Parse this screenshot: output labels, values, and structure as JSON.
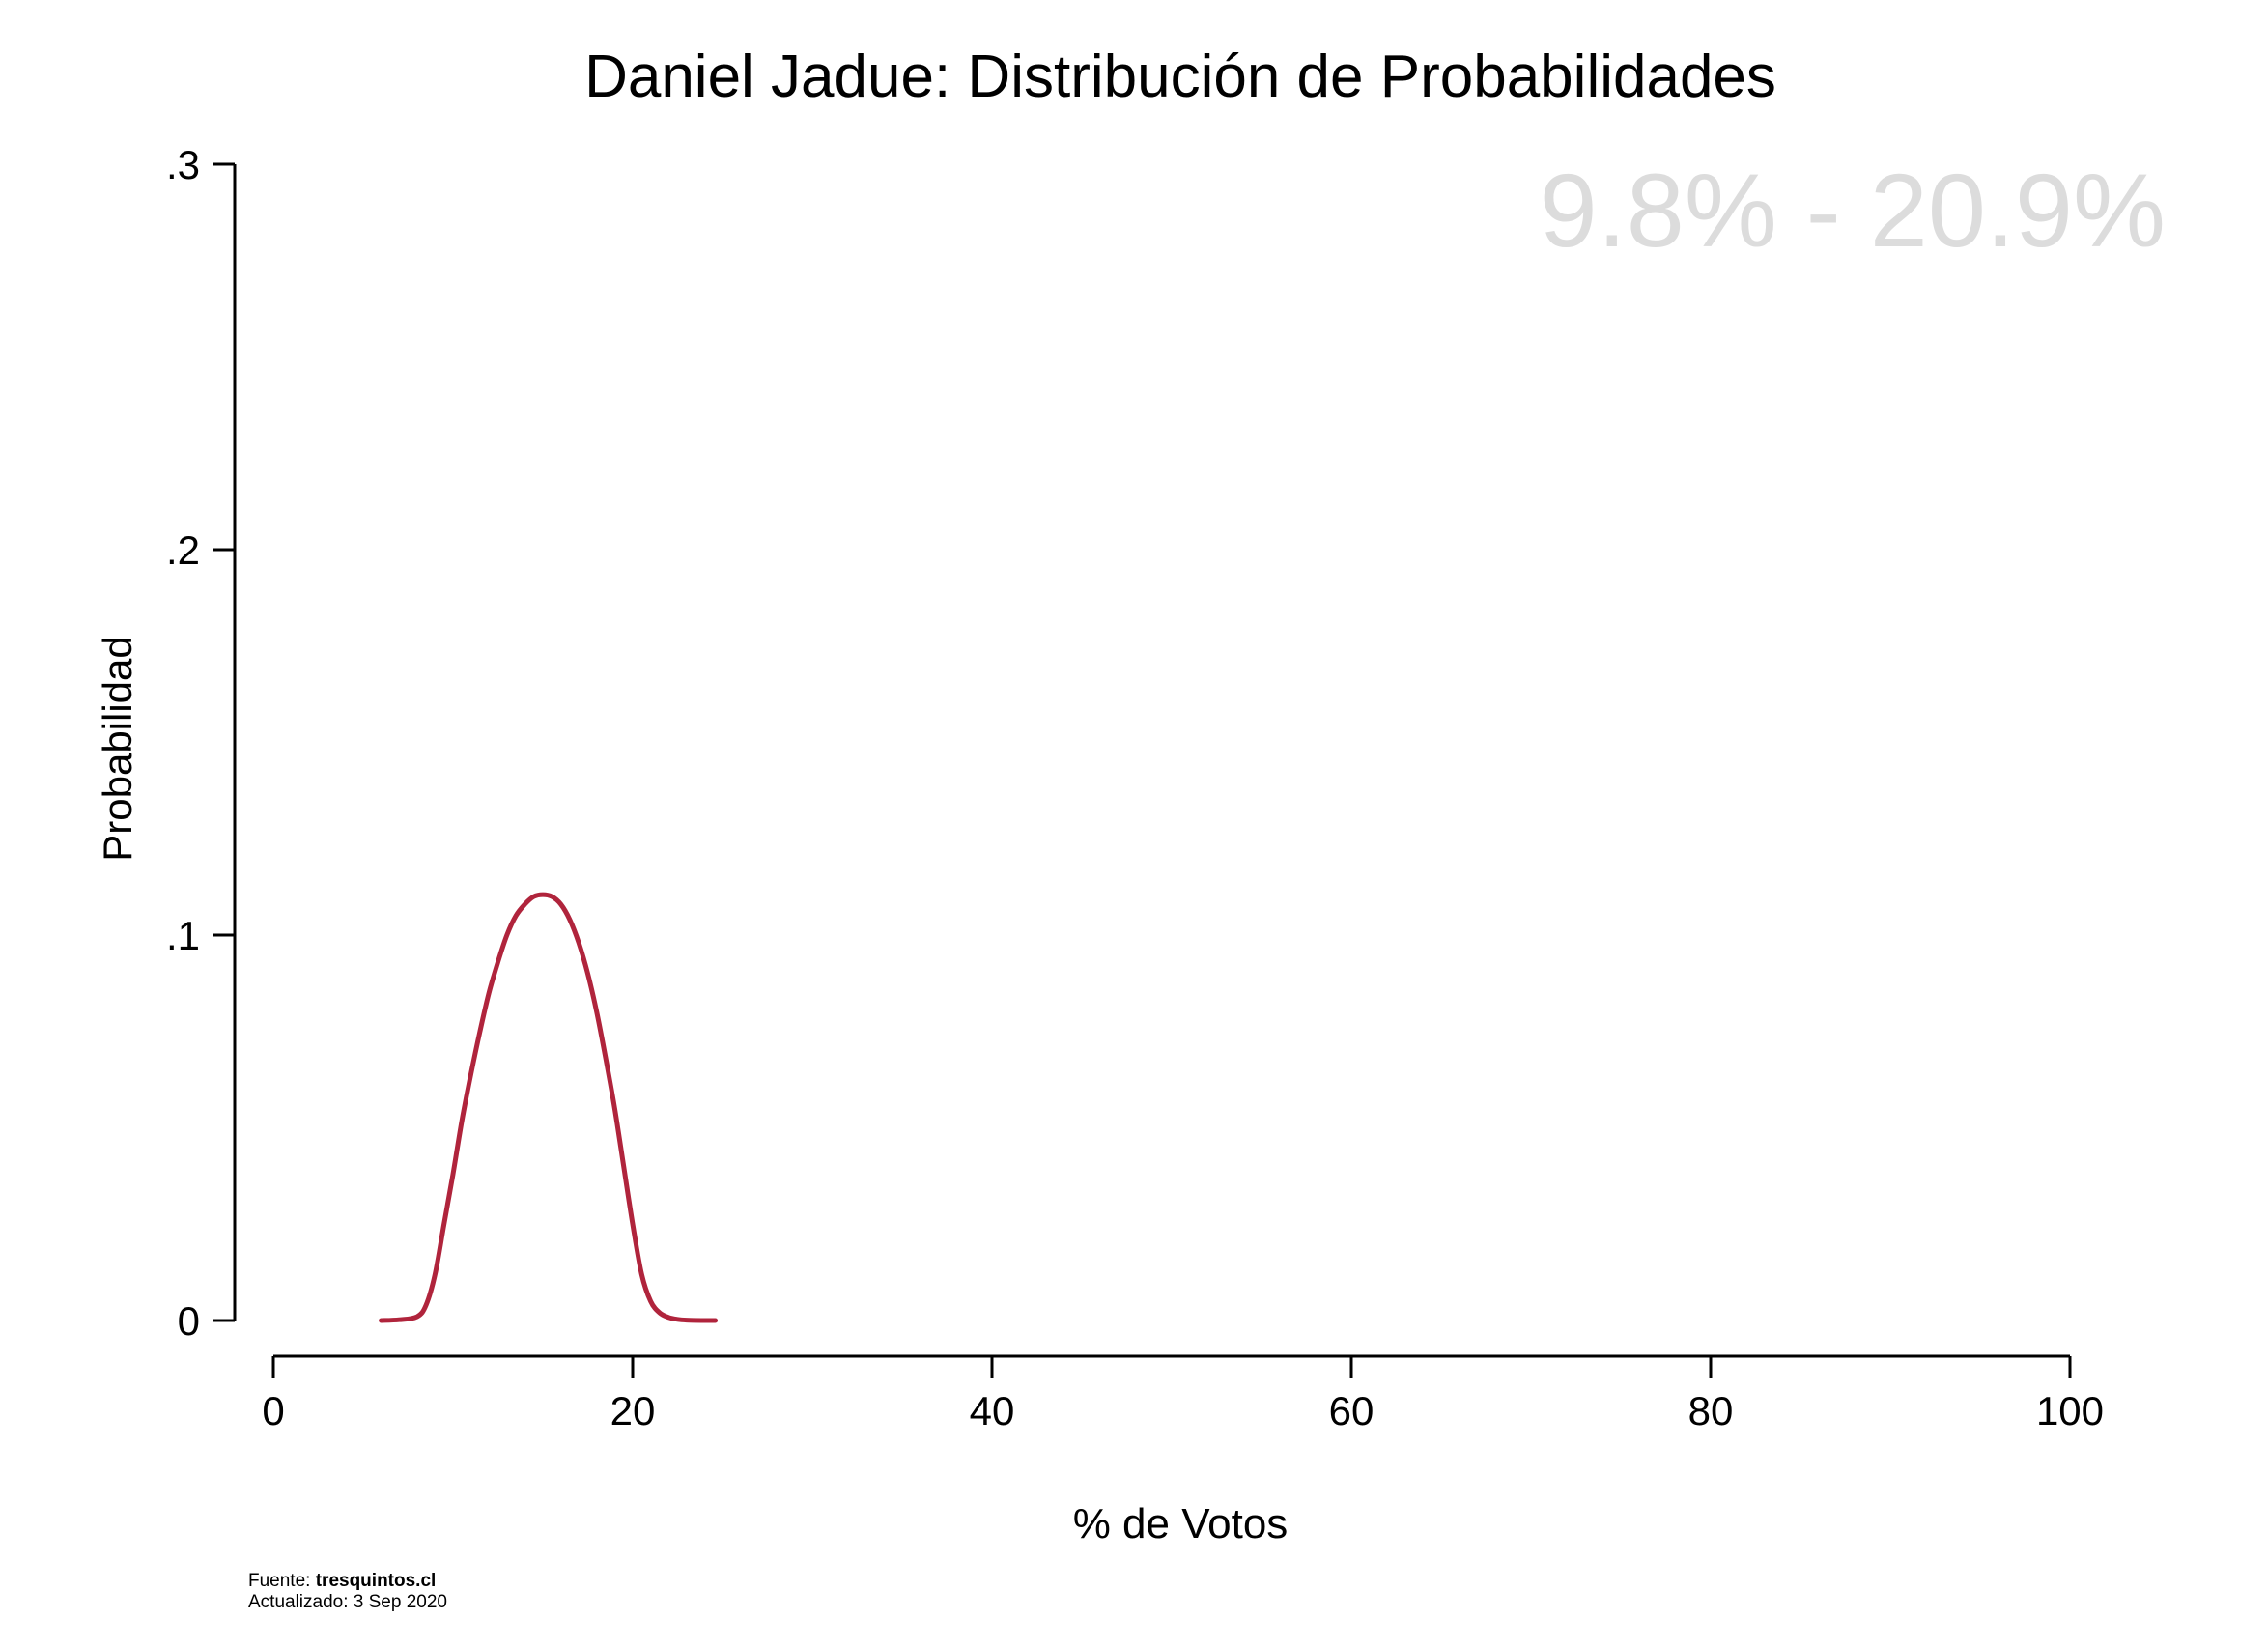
{
  "chart_data": {
    "type": "line",
    "title": "Daniel Jadue: Distribución de Probabilidades",
    "xlabel": "% de Votos",
    "ylabel": "Probabilidad",
    "xlim": [
      0,
      100
    ],
    "ylim": [
      0,
      0.3
    ],
    "x_ticks": [
      0,
      20,
      40,
      60,
      80,
      100
    ],
    "x_tick_labels": [
      "0",
      "20",
      "40",
      "60",
      "80",
      "100"
    ],
    "y_ticks": [
      0,
      0.1,
      0.2,
      0.3
    ],
    "y_tick_labels": [
      "0",
      ".1",
      ".2",
      ".3"
    ],
    "annotation": "9.8% - 20.9%",
    "grid": false,
    "line_color": "#b0243c",
    "annotation_color": "#dcdcdc",
    "series": [
      {
        "x": [
          6.0,
          7.0,
          8.0,
          8.5,
          9.0,
          9.5,
          10.0,
          10.5,
          11.0,
          11.5,
          12.0,
          12.5,
          13.0,
          13.5,
          14.0,
          14.5,
          15.0,
          15.5,
          16.0,
          16.5,
          17.0,
          17.5,
          18.0,
          18.5,
          19.0,
          19.5,
          20.0,
          20.5,
          21.0,
          21.5,
          22.0,
          22.5,
          23.0,
          24.0,
          24.6
        ],
        "y": [
          0.0,
          0.0002,
          0.001,
          0.004,
          0.012,
          0.025,
          0.038,
          0.052,
          0.064,
          0.075,
          0.085,
          0.093,
          0.1,
          0.105,
          0.108,
          0.11,
          0.1105,
          0.11,
          0.108,
          0.104,
          0.098,
          0.09,
          0.08,
          0.068,
          0.055,
          0.04,
          0.025,
          0.012,
          0.005,
          0.002,
          0.0008,
          0.0003,
          0.0001,
          0.0,
          0.0
        ]
      }
    ]
  },
  "footer": {
    "source_prefix": "Fuente: ",
    "source_name": "tresquintos.cl",
    "updated": "Actualizado: 3 Sep 2020"
  }
}
